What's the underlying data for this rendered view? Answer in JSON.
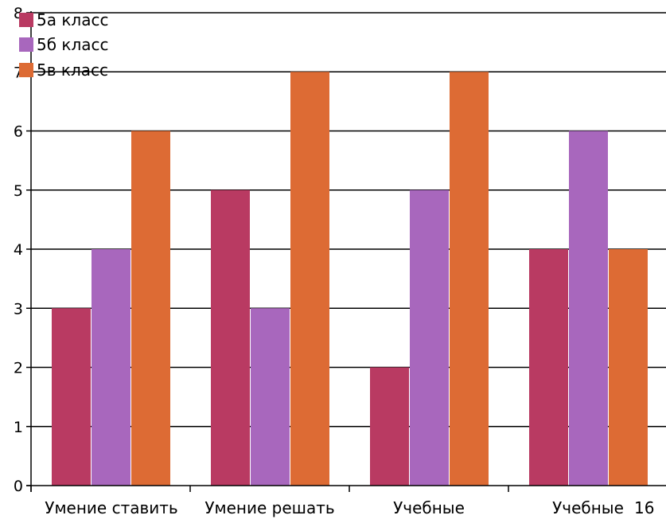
{
  "chart_data": {
    "type": "bar",
    "title": "",
    "xlabel": "",
    "ylabel": "",
    "categories": [
      "Умение ставить",
      "Умение решать",
      "Учебные",
      "Учебные"
    ],
    "extra_text": "16",
    "series": [
      {
        "name": "5а класс",
        "values": [
          3,
          5,
          2,
          4
        ],
        "color": "#b93a62"
      },
      {
        "name": "5б класс",
        "values": [
          4,
          3,
          5,
          6
        ],
        "color": "#a867bd"
      },
      {
        "name": "5в класс",
        "values": [
          6,
          7,
          7,
          4
        ],
        "color": "#dd6b34"
      }
    ],
    "ylim": [
      0,
      8
    ],
    "y_ticks": [
      0,
      1,
      2,
      3,
      4,
      5,
      6,
      7,
      8
    ],
    "grid": true,
    "legend_position": "top-left"
  }
}
